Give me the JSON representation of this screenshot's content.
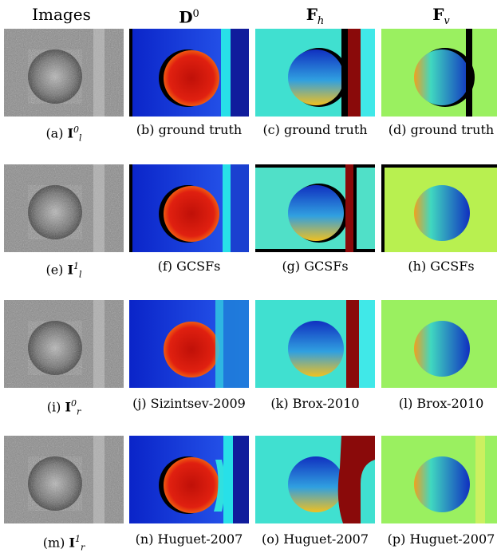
{
  "column_headers": [
    {
      "text": "Images"
    },
    {
      "main": "D",
      "sup": "0"
    },
    {
      "main": "F",
      "sub": "h"
    },
    {
      "main": "F",
      "sub": "v"
    }
  ],
  "rows": [
    {
      "captions": [
        {
          "prefix": "(a) ",
          "sym": "I",
          "sup": "0",
          "sub": "l"
        },
        {
          "text": "(b) ground truth"
        },
        {
          "text": "(c) ground truth"
        },
        {
          "text": "(d) ground truth"
        }
      ]
    },
    {
      "captions": [
        {
          "prefix": "(e) ",
          "sym": "I",
          "sup": "1",
          "sub": "l"
        },
        {
          "text": "(f) GCSFs"
        },
        {
          "text": "(g) GCSFs"
        },
        {
          "text": "(h) GCSFs"
        }
      ]
    },
    {
      "captions": [
        {
          "prefix": "(i) ",
          "sym": "I",
          "sup": "0",
          "sub": "r"
        },
        {
          "text": "(j) Sizintsev-2009"
        },
        {
          "text": "(k) Brox-2010"
        },
        {
          "text": "(l) Brox-2010"
        }
      ]
    },
    {
      "captions": [
        {
          "prefix": "(m) ",
          "sym": "I",
          "sup": "1",
          "sub": "r"
        },
        {
          "text": "(n) Huguet-2007"
        },
        {
          "text": "(o) Huguet-2007"
        },
        {
          "text": "(p) Huguet-2007"
        }
      ]
    }
  ],
  "colors": {
    "gray_bg": "#8a8a8a",
    "depth_bg": "#1840d8",
    "depth_sphere": "#e02010",
    "depth_stripe": "#28e0e8",
    "depth_stripe_dark": "#101c9c",
    "fh_bg": "#40e0d0",
    "fh_sphere_top": "#1030c0",
    "fh_sphere_bottom": "#f0c020",
    "fh_stripe": "#8a0a0a",
    "fv_bg": "#9af060",
    "fv_sphere_left": "#f0a020",
    "fv_sphere_right": "#1030c0"
  }
}
